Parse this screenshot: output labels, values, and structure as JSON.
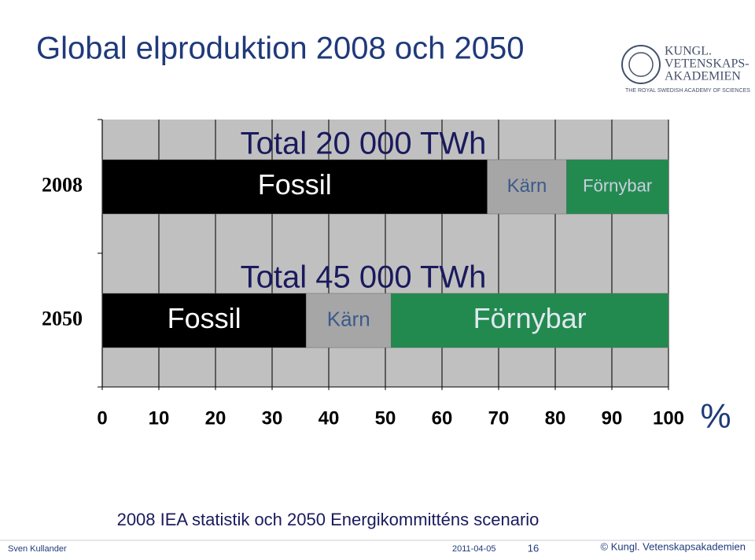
{
  "chart_data": {
    "type": "stacked-barh",
    "title": "Global elproduktion 2008 och 2050",
    "categories": [
      "2008",
      "2050"
    ],
    "annotations": [
      "Total 20 000 TWh",
      "Total 45 000 TWh"
    ],
    "series": [
      {
        "name": "Fossil",
        "color": "#000000",
        "values": [
          68,
          36
        ]
      },
      {
        "name": "Kärn",
        "color": "#a6a6a6",
        "values": [
          14,
          15
        ]
      },
      {
        "name": "Förnybar",
        "color": "#238a4f",
        "values": [
          18,
          49
        ]
      }
    ],
    "xlim": [
      0,
      100
    ],
    "xticks": [
      0,
      10,
      20,
      30,
      40,
      50,
      60,
      70,
      80,
      90,
      100
    ],
    "xlabel": "%",
    "grid": true,
    "source": "2008 IEA statistik och 2050 Energikommitténs scenario"
  },
  "logo": {
    "line1": "KUNGL.",
    "line2": "VETENSKAPS-",
    "line3": "AKADEMIEN",
    "subtitle": "THE ROYAL SWEDISH ACADEMY OF SCIENCES"
  },
  "footer": {
    "author": "Sven Kullander",
    "date": "2011-04-05",
    "page": "16",
    "copyright": "© Kungl. Vetenskapsakademien"
  }
}
